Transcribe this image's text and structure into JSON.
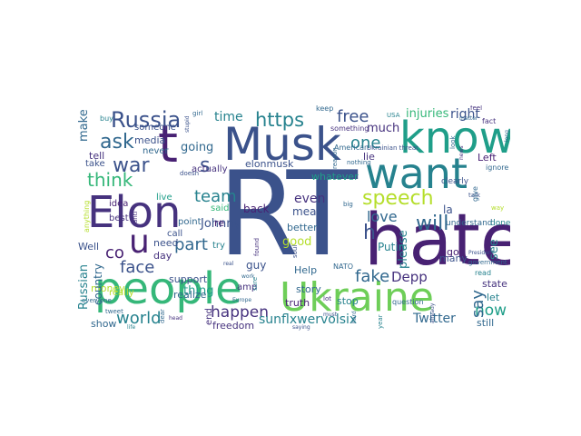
{
  "word_cloud": {
    "palette": {
      "dark_purple": "#46327e",
      "purple": "#482173",
      "indigo": "#3b528b",
      "blue": "#31688e",
      "teal": "#26828e",
      "green_teal": "#1f9e89",
      "green": "#35b779",
      "lime": "#6ece58",
      "yellow_green": "#b5de2b",
      "yellow": "#fde725"
    },
    "words": {
      "rt": "RT",
      "hate": "hate",
      "musk": "Musk",
      "know": "know",
      "want": "want",
      "people": "people",
      "ukraine": "Ukraine",
      "elon": "Elon",
      "russia": "Russia",
      "https": "https",
      "t": "t",
      "u": "u",
      "s": "s",
      "speech": "speech",
      "will": "will",
      "free": "free",
      "one": "one",
      "war": "war",
      "ask": "ask",
      "think": "think",
      "team": "team",
      "part": "part",
      "face": "face",
      "co": "co",
      "world": "world",
      "happen": "happen",
      "fake": "fake",
      "love": "love",
      "say": "say",
      "now": "now",
      "right": "right",
      "injuries": "injuries",
      "much": "much",
      "even": "even",
      "mean": "mean",
      "good": "good",
      "h": "h",
      "depp": "Depp",
      "twitter": "Twitter",
      "sunflx": "sunflxwervolsix",
      "johnny": "Johnny",
      "thing": "thing",
      "going": "going",
      "time": "time",
      "media": "media",
      "make": "make",
      "tell": "tell",
      "elonmusk": "elonmusk",
      "lie": "lie",
      "left": "Left",
      "putin": "Putin",
      "see": "see",
      "la": "la",
      "help": "Help",
      "story": "story",
      "truth": "truth",
      "stop": "stop",
      "state": "state",
      "let": "let",
      "still": "still",
      "many": "many",
      "please": "please",
      "go": "go",
      "russian": "Russian",
      "money": "money",
      "show": "show",
      "freedom": "freedom",
      "support": "support",
      "realize": "realize",
      "need": "need",
      "day": "day",
      "guy": "guy",
      "amp": "amp",
      "better": "better",
      "back": "back",
      "whatever": "whatever",
      "actually": "actually",
      "never": "never",
      "someone": "someone",
      "well": "Well",
      "really": "really",
      "idea": "idea",
      "best": "best",
      "country": "country",
      "take": "take",
      "end": "end",
      "try": "try",
      "said": "said",
      "re": "re",
      "point": "point",
      "live": "live",
      "call": "call",
      "ukrainian_threat": "Ukrainian threat",
      "something": "something",
      "government": "government",
      "understand": "understand",
      "done": "done",
      "american": "American",
      "nato": "NATO",
      "question": "question",
      "clearly": "clearly",
      "anything": "anything",
      "everyone": "everyone",
      "doesn": "doesn",
      "buy": "buy",
      "read": "read",
      "give": "give",
      "talk": "talk",
      "fact": "fact",
      "keep": "keep",
      "ignore": "ignore",
      "girl": "girl",
      "soul": "soul",
      "anti": "anti",
      "dear": "dear",
      "sure": "sure",
      "usa": "USA",
      "found": "found",
      "look": "look",
      "tweet": "tweet",
      "president": "President",
      "feel": "feel",
      "real": "real",
      "year": "year",
      "reason": "reason",
      "work": "work",
      "matter": "matter",
      "already": "already",
      "way": "way",
      "nothing": "nothing",
      "saying": "saying",
      "head": "head",
      "long": "long",
      "news": "news",
      "lot": "lot",
      "life": "life",
      "big": "big",
      "hard": "hard",
      "must": "must",
      "europe": "Europe",
      "stupid": "stupid"
    }
  }
}
